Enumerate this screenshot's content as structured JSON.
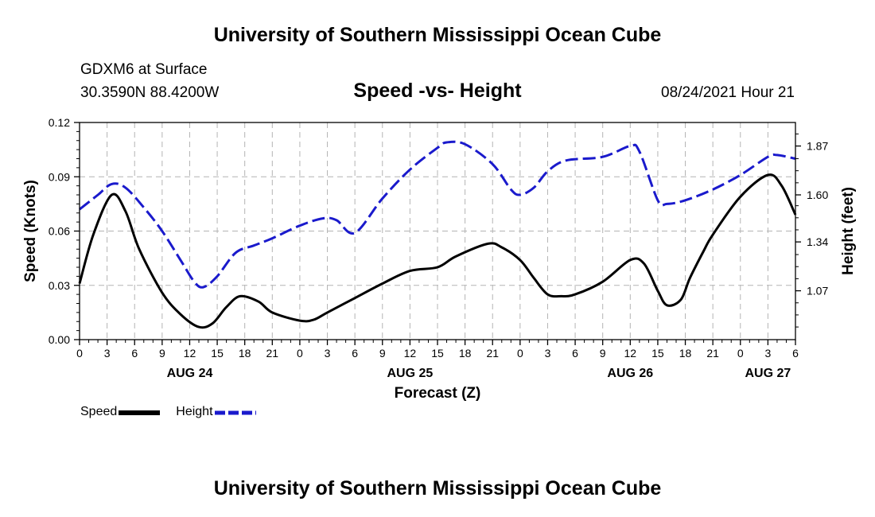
{
  "header": {
    "title": "University of Southern Mississippi Ocean Cube",
    "station": "GDXM6 at Surface",
    "coords": "30.3590N  88.4200W",
    "datestamp": "08/24/2021 Hour 21"
  },
  "footer": {
    "title": "University of Southern Mississippi Ocean Cube"
  },
  "legend": {
    "speed_label": "Speed",
    "height_label": "Height"
  },
  "colors": {
    "speed": "#000000",
    "height": "#1a1acc",
    "grid": "#b4b4b4"
  },
  "chart_data": {
    "type": "line",
    "title": "Speed -vs- Height",
    "xlabel": "Forecast (Z)",
    "ylabel": "Speed (Knots)",
    "y2label": "Height (feet)",
    "xlim": [
      0,
      78
    ],
    "ylim": [
      0,
      0.12
    ],
    "y2lim": [
      0.8,
      2.0
    ],
    "yticks": [
      0.0,
      0.03,
      0.06,
      0.09,
      0.12
    ],
    "ytick_labels": [
      "0.00",
      "0.03",
      "0.06",
      "0.09",
      "0.12"
    ],
    "y2ticks": [
      1.07,
      1.34,
      1.6,
      1.87
    ],
    "y2tick_labels": [
      "1.07",
      "1.34",
      "1.60",
      "1.87"
    ],
    "xtick_labels": [
      "0",
      "3",
      "6",
      "9",
      "12",
      "15",
      "18",
      "21",
      "0",
      "3",
      "6",
      "9",
      "12",
      "15",
      "18",
      "21",
      "0",
      "3",
      "6",
      "9",
      "12",
      "15",
      "18",
      "21",
      "0",
      "3",
      "6"
    ],
    "day_labels": [
      {
        "label": "AUG 24",
        "x": 12
      },
      {
        "label": "AUG 25",
        "x": 36
      },
      {
        "label": "AUG 26",
        "x": 60
      },
      {
        "label": "AUG 27",
        "x": 75
      }
    ],
    "grid": true,
    "series": [
      {
        "name": "Speed",
        "axis": "left",
        "style": "solid",
        "x": [
          0,
          1.5,
          3.5,
          5,
          6.5,
          9,
          11,
          13,
          14.5,
          16,
          17.5,
          19.5,
          21,
          24,
          25.5,
          27,
          30,
          33,
          36,
          39,
          41,
          44.5,
          46,
          48,
          49.5,
          51,
          52.5,
          54,
          57,
          60,
          61.5,
          63,
          64,
          65.5,
          66.5,
          68,
          69,
          72,
          75,
          76.5,
          78
        ],
        "values": [
          0.031,
          0.058,
          0.08,
          0.071,
          0.05,
          0.026,
          0.014,
          0.007,
          0.009,
          0.018,
          0.024,
          0.021,
          0.015,
          0.0105,
          0.011,
          0.015,
          0.023,
          0.031,
          0.038,
          0.04,
          0.046,
          0.053,
          0.051,
          0.044,
          0.034,
          0.025,
          0.024,
          0.025,
          0.032,
          0.044,
          0.042,
          0.027,
          0.019,
          0.022,
          0.034,
          0.049,
          0.058,
          0.079,
          0.091,
          0.085,
          0.069
        ]
      },
      {
        "name": "Height",
        "axis": "right",
        "style": "dashed",
        "x": [
          0,
          2,
          3.5,
          5,
          7,
          9,
          11,
          12.5,
          13.5,
          15,
          17,
          19,
          21,
          24,
          26.5,
          28,
          30,
          33,
          36,
          39,
          40,
          42,
          45,
          47,
          48,
          49.5,
          51,
          53,
          57,
          60,
          61,
          63,
          64,
          66,
          69,
          72,
          75,
          76,
          78
        ],
        "values": [
          1.52,
          1.6,
          1.66,
          1.64,
          1.53,
          1.4,
          1.24,
          1.12,
          1.09,
          1.15,
          1.28,
          1.32,
          1.36,
          1.43,
          1.47,
          1.46,
          1.39,
          1.58,
          1.74,
          1.86,
          1.89,
          1.88,
          1.77,
          1.63,
          1.6,
          1.64,
          1.73,
          1.79,
          1.81,
          1.87,
          1.84,
          1.57,
          1.55,
          1.57,
          1.63,
          1.71,
          1.81,
          1.82,
          1.8
        ]
      }
    ]
  }
}
